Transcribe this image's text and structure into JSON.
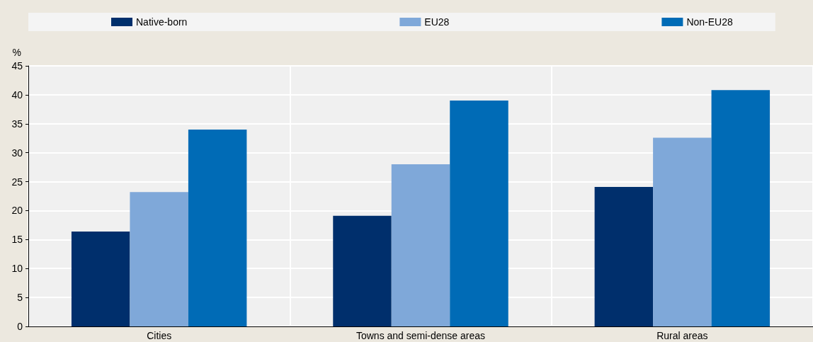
{
  "chart_data": {
    "type": "bar",
    "ylabel": "%",
    "categories": [
      "Cities",
      "Towns and semi-dense areas",
      "Rural areas"
    ],
    "series": [
      {
        "name": "Native-born",
        "color": "#002f6c",
        "values": [
          16.4,
          19.1,
          24.1
        ]
      },
      {
        "name": "EU28",
        "color": "#7fa8d9",
        "values": [
          23.2,
          28.0,
          32.6
        ]
      },
      {
        "name": "Non-EU28",
        "color": "#006bb6",
        "values": [
          34.0,
          39.0,
          40.8
        ]
      }
    ],
    "ylim": [
      0,
      45
    ],
    "yticks": [
      0,
      5,
      10,
      15,
      20,
      25,
      30,
      35,
      40,
      45
    ],
    "grid": true,
    "legend": "top"
  }
}
